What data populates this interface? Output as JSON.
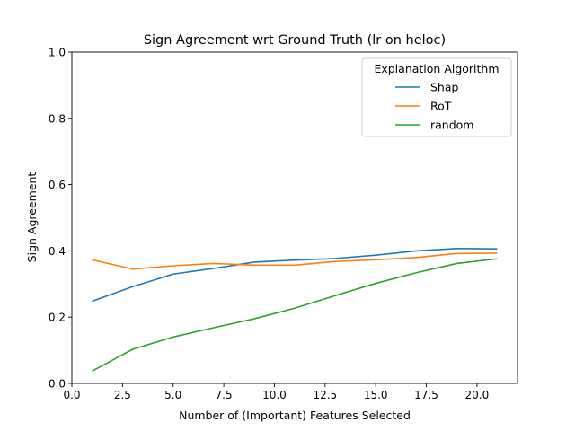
{
  "chart_data": {
    "type": "line",
    "title": "Sign Agreement wrt Ground Truth (lr on heloc)",
    "xlabel": "Number of (Important) Features Selected",
    "ylabel": "Sign Agreement",
    "xlim": [
      0.0,
      22.0
    ],
    "ylim": [
      0.0,
      1.0
    ],
    "xticks": [
      0.0,
      2.5,
      5.0,
      7.5,
      10.0,
      12.5,
      15.0,
      17.5,
      20.0
    ],
    "xtick_labels": [
      "0.0",
      "2.5",
      "5.0",
      "7.5",
      "10.0",
      "12.5",
      "15.0",
      "17.5",
      "20.0"
    ],
    "yticks": [
      0.0,
      0.2,
      0.4,
      0.6,
      0.8,
      1.0
    ],
    "ytick_labels": [
      "0.0",
      "0.2",
      "0.4",
      "0.6",
      "0.8",
      "1.0"
    ],
    "grid": false,
    "legend": {
      "title": "Explanation Algorithm",
      "placement": "top-right"
    },
    "x": [
      1,
      3,
      5,
      7,
      9,
      11,
      13,
      15,
      17,
      19,
      21
    ],
    "series": [
      {
        "name": "Shap",
        "color": "#1f77b4",
        "values": [
          0.248,
          0.292,
          0.33,
          0.347,
          0.366,
          0.372,
          0.377,
          0.387,
          0.4,
          0.407,
          0.406
        ]
      },
      {
        "name": "RoT",
        "color": "#ff7f0e",
        "values": [
          0.373,
          0.345,
          0.355,
          0.362,
          0.357,
          0.357,
          0.368,
          0.373,
          0.38,
          0.392,
          0.393
        ]
      },
      {
        "name": "random",
        "color": "#2ca02c",
        "values": [
          0.037,
          0.103,
          0.14,
          0.168,
          0.195,
          0.227,
          0.265,
          0.302,
          0.334,
          0.362,
          0.376
        ]
      }
    ]
  }
}
